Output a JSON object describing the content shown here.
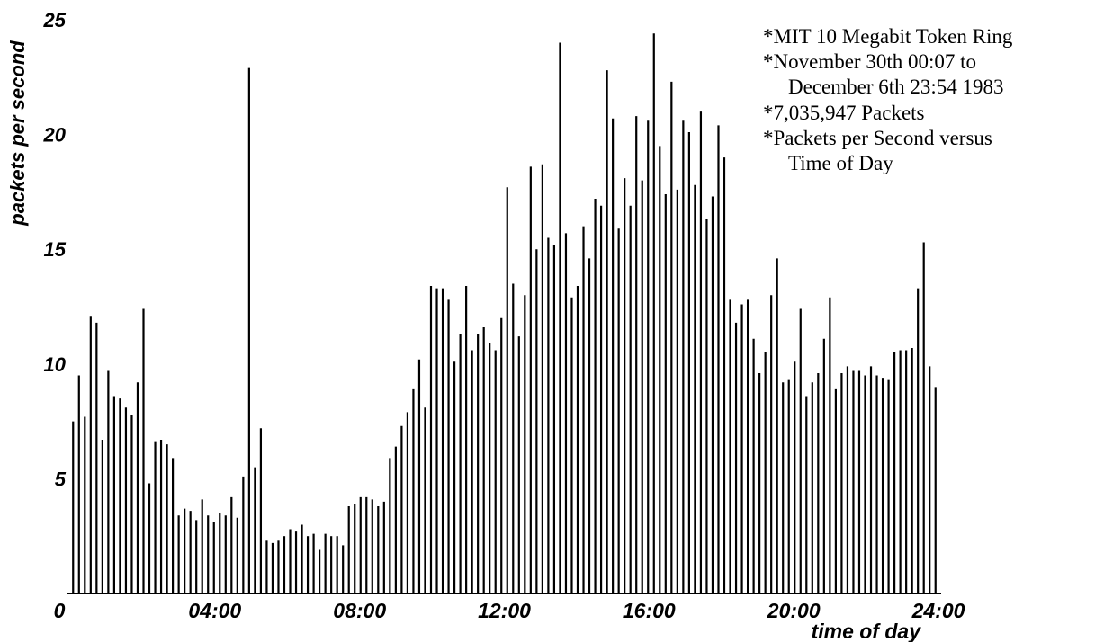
{
  "chart_data": {
    "type": "bar",
    "xlabel": "time of day",
    "ylabel": "packets per second",
    "ylim": [
      0,
      25
    ],
    "xlim": [
      0,
      24
    ],
    "y_ticks": [
      "5",
      "10",
      "15",
      "20",
      "25"
    ],
    "x_ticks": [
      "0",
      "04:00",
      "08:00",
      "12:00",
      "16:00",
      "20:00",
      "24:00"
    ],
    "annotation": [
      "*MIT 10 Megabit Token Ring",
      "*November 30th 00:07 to",
      "December 6th 23:54 1983",
      "*7,035,947 Packets",
      "*Packets per Second versus",
      "Time of Day"
    ],
    "values": [
      7.5,
      9.5,
      7.7,
      12.1,
      11.8,
      6.7,
      9.7,
      8.6,
      8.5,
      8.1,
      7.8,
      9.2,
      12.4,
      4.8,
      6.6,
      6.7,
      6.5,
      5.9,
      3.4,
      3.7,
      3.6,
      3.2,
      4.1,
      3.4,
      3.1,
      3.5,
      3.4,
      4.2,
      3.3,
      5.1,
      22.9,
      5.5,
      7.2,
      2.3,
      2.2,
      2.3,
      2.5,
      2.8,
      2.7,
      3.0,
      2.5,
      2.6,
      1.9,
      2.6,
      2.5,
      2.5,
      2.1,
      3.8,
      3.9,
      4.2,
      4.2,
      4.1,
      3.8,
      4.0,
      5.9,
      6.4,
      7.3,
      7.9,
      8.9,
      10.2,
      8.1,
      13.4,
      13.3,
      13.3,
      12.8,
      10.1,
      11.3,
      13.4,
      10.6,
      11.3,
      11.6,
      10.9,
      10.6,
      12.0,
      17.7,
      13.5,
      11.2,
      13.0,
      18.6,
      15.0,
      18.7,
      15.5,
      15.2,
      24.0,
      15.7,
      12.9,
      13.4,
      16.0,
      14.6,
      17.2,
      16.9,
      22.8,
      20.7,
      15.9,
      18.1,
      16.9,
      20.8,
      18.0,
      20.6,
      24.4,
      19.5,
      17.4,
      22.3,
      17.6,
      20.6,
      20.1,
      17.8,
      21.0,
      16.3,
      17.3,
      20.4,
      19.0,
      12.8,
      11.8,
      12.6,
      12.8,
      11.1,
      9.6,
      10.5,
      13.0,
      14.6,
      9.2,
      9.3,
      10.1,
      12.4,
      8.6,
      9.2,
      9.6,
      11.1,
      12.9,
      8.9,
      9.6,
      9.9,
      9.7,
      9.7,
      9.5,
      9.9,
      9.5,
      9.4,
      9.3,
      10.5,
      10.6,
      10.6,
      10.7,
      13.3,
      15.3,
      9.9,
      9.0
    ]
  }
}
